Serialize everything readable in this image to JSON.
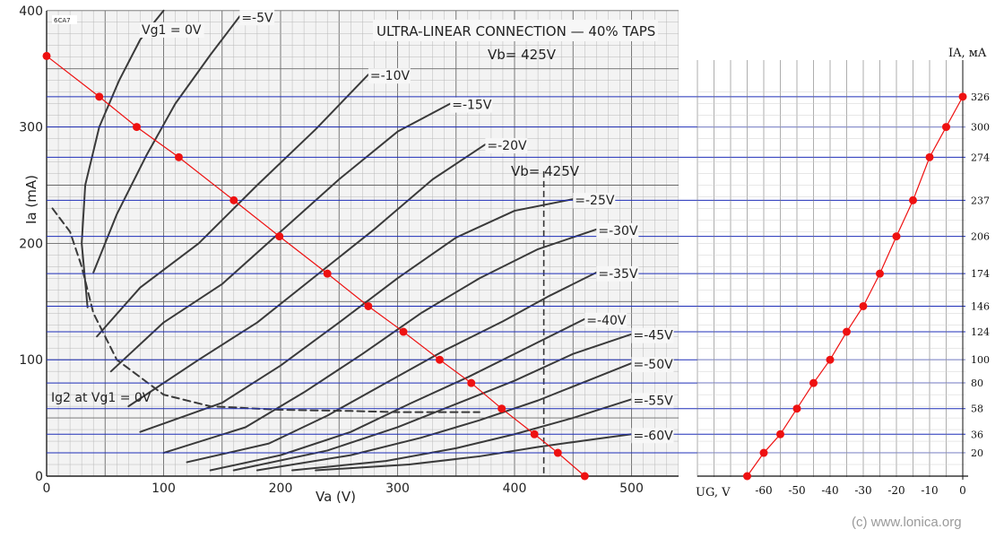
{
  "colors": {
    "paper": "#f3f3f3",
    "grid_minor": "#b8b8b8",
    "grid_major": "#6a6a6a",
    "curve": "#3a3a3a",
    "blue": "#1f2fb8",
    "red": "#ee1111",
    "fine_grid": "#777777"
  },
  "left_chart": {
    "title": "ULTRA-LINEAR CONNECTION — 40% TAPS",
    "vb_top": "Vb= 425V",
    "vb_mid": "Vb= 425V",
    "xlabel": "Va (V)",
    "ylabel": "Ia (mA)",
    "ig2_label": "Ig2 at Vg1 = 0V",
    "corner_tag": "6CA7",
    "x_ticks": [
      "0",
      "100",
      "200",
      "300",
      "400",
      "500"
    ],
    "y_ticks": [
      "0",
      "100",
      "200",
      "300",
      "400"
    ],
    "curve_labels": [
      "Vg1 = 0V",
      "=-5V",
      "=-10V",
      "=-15V",
      "=-20V",
      "=-25V",
      "=-30V",
      "=-35V",
      "=-40V",
      "=-45V",
      "=-50V",
      "=-55V",
      "=-60V"
    ]
  },
  "right_chart": {
    "ylabel": "IA, мA",
    "xlabel": "UG, V",
    "x_ticks": [
      "-60",
      "-50",
      "-40",
      "-30",
      "-20",
      "-10",
      "0"
    ],
    "y_ticks": [
      "326",
      "300",
      "274",
      "237",
      "206",
      "174",
      "146",
      "124",
      "100",
      "80",
      "58",
      "36",
      "20"
    ]
  },
  "watermark": "(c) www.lonica.org",
  "chart_data": [
    {
      "type": "line",
      "title": "ULTRA-LINEAR CONNECTION — 40% TAPS",
      "xlabel": "Va (V)",
      "ylabel": "Ia (mA)",
      "xlim": [
        0,
        540
      ],
      "ylim": [
        0,
        400
      ],
      "grid": true,
      "series": [
        {
          "name": "Vg1 = 0V",
          "x": [
            35,
            30,
            33,
            45,
            62,
            80,
            100
          ],
          "y": [
            145,
            200,
            250,
            300,
            340,
            375,
            400
          ]
        },
        {
          "name": "=-5V",
          "x": [
            40,
            60,
            85,
            110,
            140,
            165
          ],
          "y": [
            175,
            225,
            275,
            320,
            362,
            395
          ]
        },
        {
          "name": "=-10V",
          "x": [
            43,
            80,
            130,
            180,
            230,
            275
          ],
          "y": [
            120,
            162,
            200,
            250,
            298,
            345
          ]
        },
        {
          "name": "=-15V",
          "x": [
            55,
            100,
            150,
            200,
            250,
            300,
            345
          ],
          "y": [
            90,
            132,
            165,
            210,
            255,
            296,
            320
          ]
        },
        {
          "name": "=-20V",
          "x": [
            70,
            130,
            180,
            230,
            280,
            330,
            375
          ],
          "y": [
            60,
            100,
            132,
            172,
            212,
            255,
            285
          ]
        },
        {
          "name": "=-25V",
          "x": [
            80,
            150,
            200,
            250,
            300,
            350,
            400,
            450
          ],
          "y": [
            38,
            63,
            95,
            132,
            170,
            205,
            228,
            238
          ]
        },
        {
          "name": "=-30V",
          "x": [
            100,
            170,
            220,
            270,
            320,
            370,
            420,
            470
          ],
          "y": [
            20,
            42,
            72,
            105,
            140,
            170,
            195,
            212
          ]
        },
        {
          "name": "=-35V",
          "x": [
            120,
            190,
            240,
            290,
            340,
            390,
            430,
            470
          ],
          "y": [
            12,
            28,
            52,
            80,
            108,
            133,
            155,
            175
          ]
        },
        {
          "name": "=-40V",
          "x": [
            140,
            200,
            260,
            310,
            360,
            410,
            460
          ],
          "y": [
            5,
            18,
            38,
            62,
            85,
            110,
            135
          ]
        },
        {
          "name": "=-45V",
          "x": [
            160,
            240,
            300,
            350,
            400,
            450,
            500
          ],
          "y": [
            5,
            22,
            42,
            62,
            82,
            105,
            122
          ]
        },
        {
          "name": "=-50V",
          "x": [
            180,
            260,
            320,
            370,
            420,
            470,
            500
          ],
          "y": [
            5,
            18,
            33,
            48,
            65,
            85,
            97
          ]
        },
        {
          "name": "=-55V",
          "x": [
            210,
            290,
            350,
            400,
            450,
            500
          ],
          "y": [
            5,
            13,
            24,
            36,
            50,
            66
          ]
        },
        {
          "name": "=-60V",
          "x": [
            230,
            310,
            370,
            420,
            470,
            500
          ],
          "y": [
            5,
            10,
            17,
            25,
            32,
            36
          ]
        },
        {
          "name": "Ig2 at Vg1 = 0V",
          "x": [
            5,
            20,
            30,
            40,
            60,
            100,
            140,
            200,
            260,
            300,
            340,
            370
          ],
          "y": [
            230,
            210,
            180,
            140,
            100,
            70,
            60,
            57,
            56,
            55,
            55,
            55
          ]
        },
        {
          "name": "load line",
          "x": [
            0,
            45,
            77,
            113,
            160,
            199,
            240,
            275,
            305,
            336,
            363,
            389,
            417,
            437,
            460
          ],
          "y": [
            361,
            326,
            300,
            274,
            237,
            206,
            174,
            146,
            124,
            100,
            80,
            58,
            36,
            20,
            0
          ]
        }
      ]
    },
    {
      "type": "line",
      "xlabel": "UG, V",
      "ylabel": "IA, мA",
      "xlim": [
        -65,
        0
      ],
      "grid": true,
      "x": [
        -65,
        -60,
        -55,
        -50,
        -45,
        -40,
        -35,
        -30,
        -25,
        -20,
        -15,
        -10,
        -5,
        0
      ],
      "y": [
        0,
        20,
        36,
        58,
        80,
        100,
        124,
        146,
        174,
        206,
        237,
        274,
        300,
        326
      ]
    }
  ]
}
